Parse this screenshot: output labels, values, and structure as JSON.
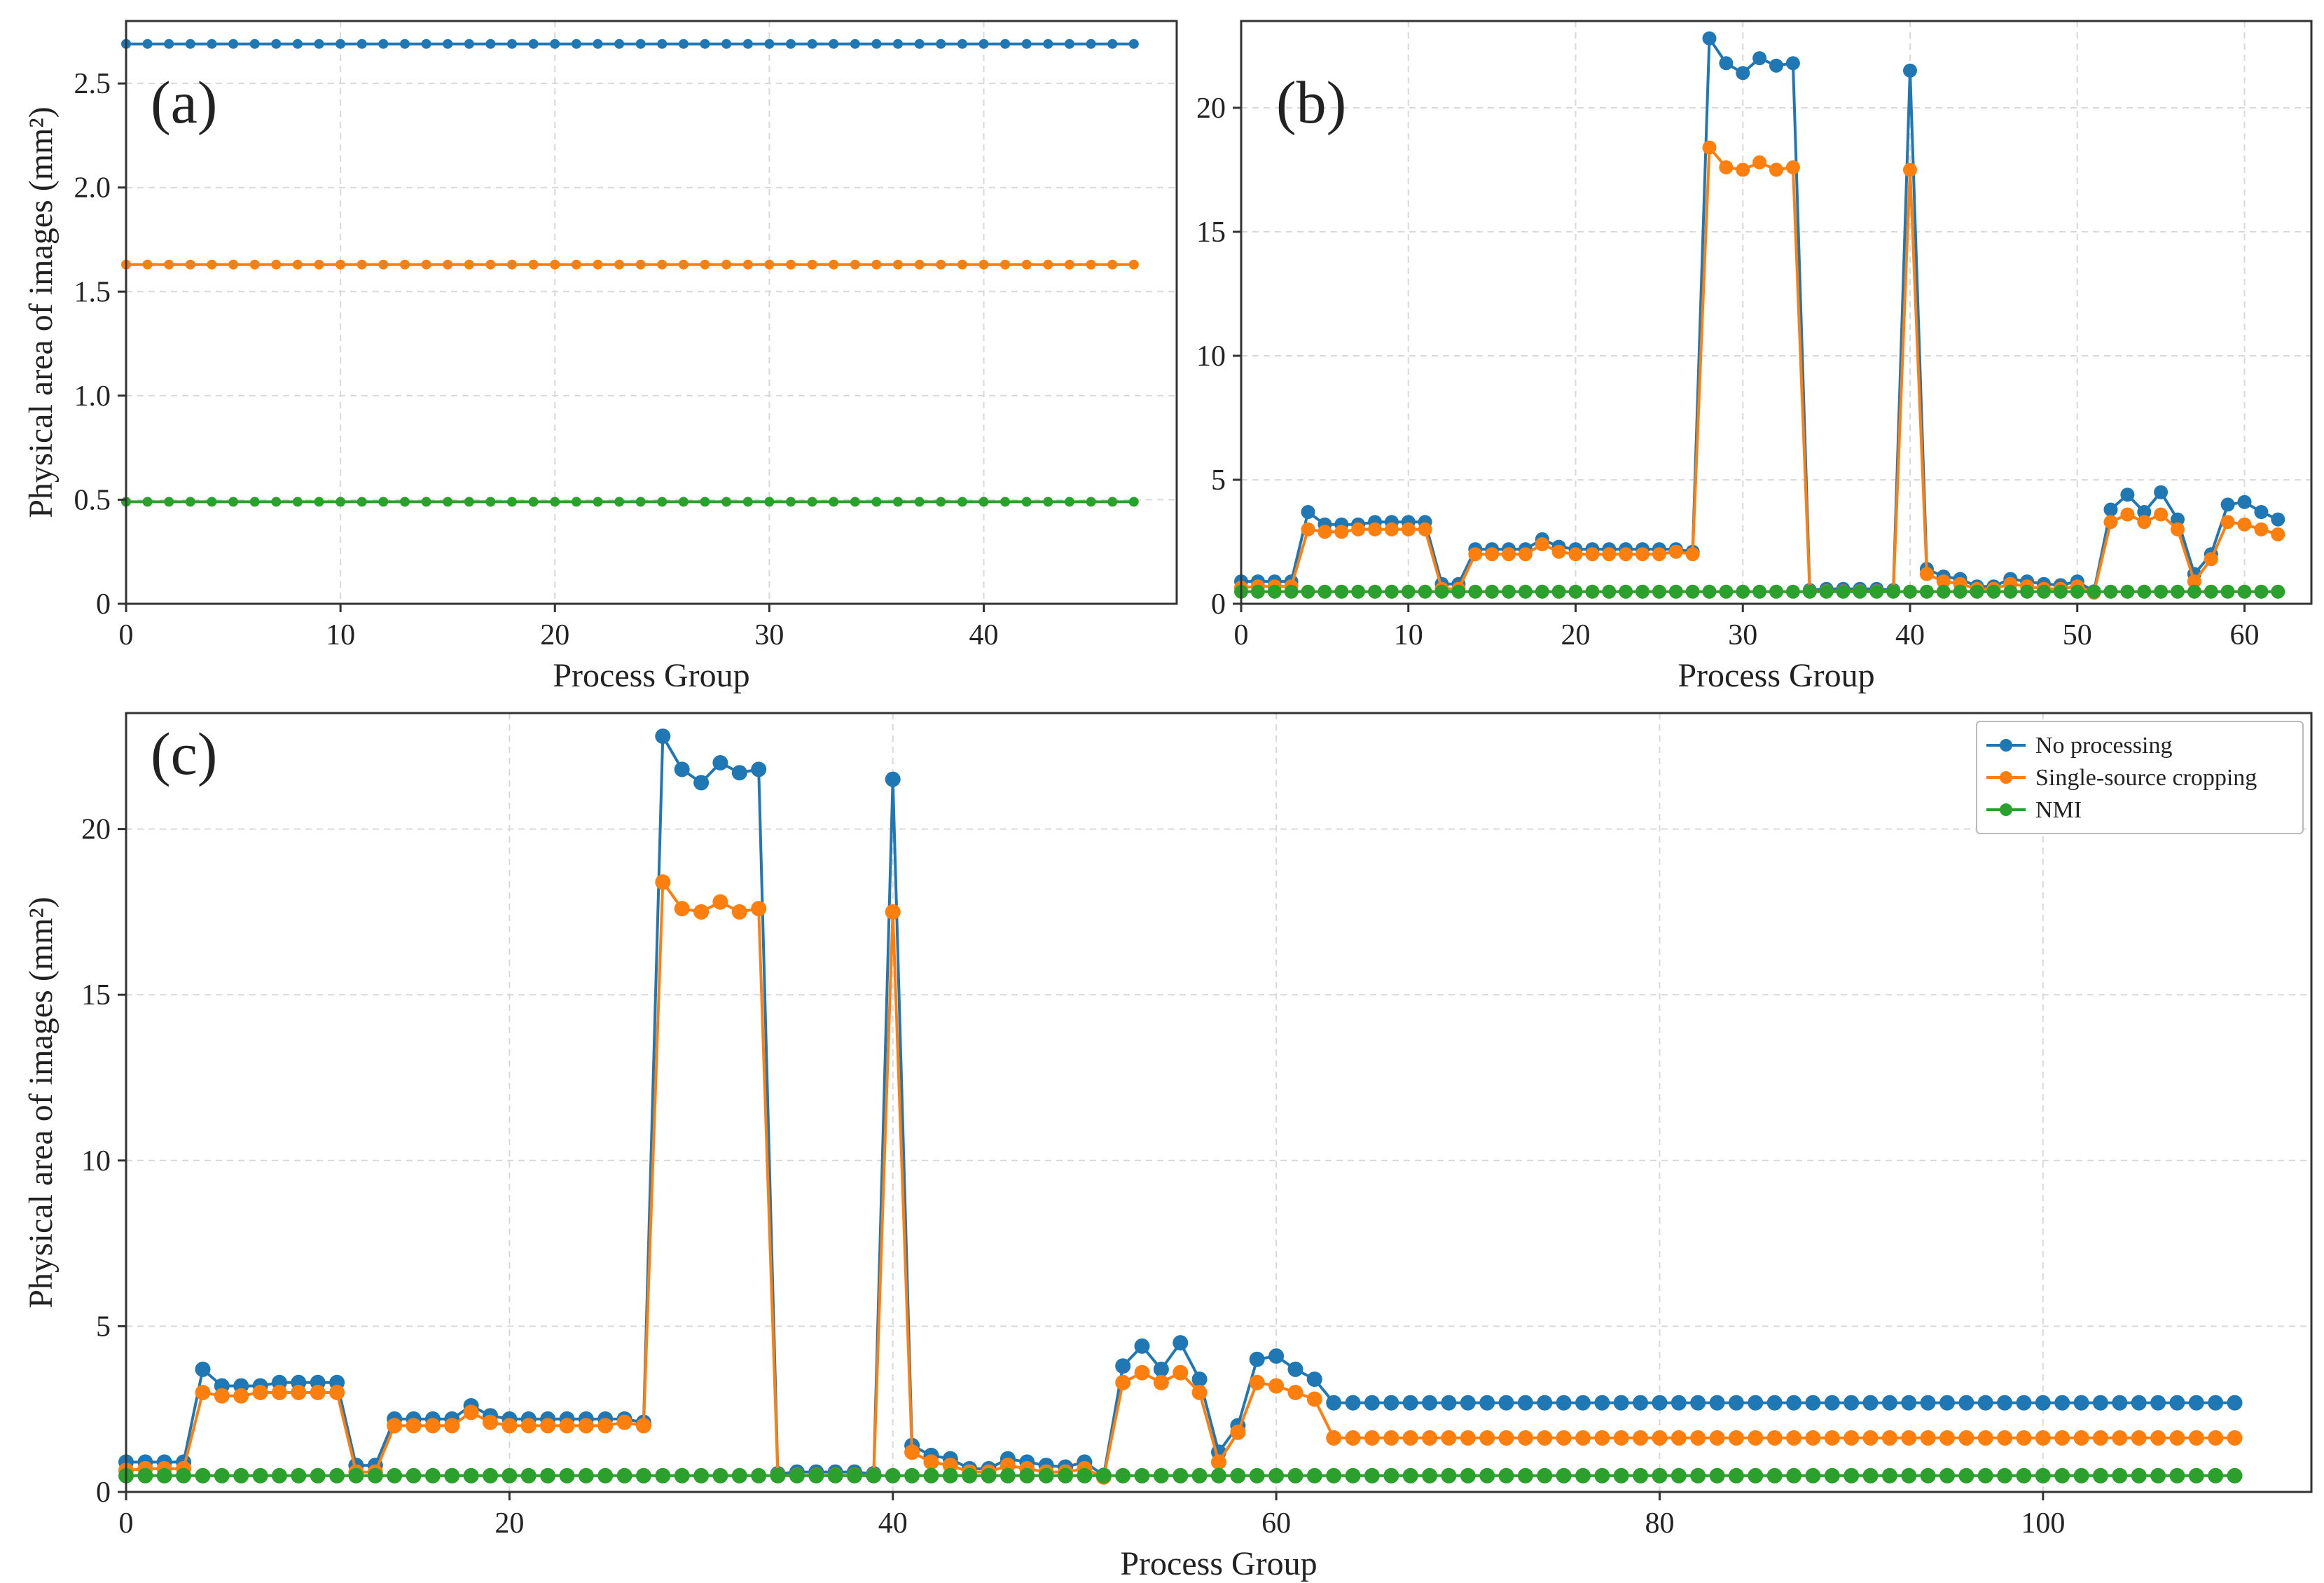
{
  "colors": {
    "no_processing": "#1f77b4",
    "single_source": "#ff7f0e",
    "nmi": "#2ca02c",
    "grid": "#d9d9d9",
    "frame": "#333333"
  },
  "chart_data": [
    {
      "panel": "(a)",
      "type": "line",
      "xlabel": "Process Group",
      "ylabel": "Physical area of images (mm²)",
      "xlim": [
        0,
        49
      ],
      "ylim": [
        0,
        2.8
      ],
      "xticks": [
        0,
        10,
        20,
        30,
        40
      ],
      "yticks": [
        0,
        0.5,
        1.0,
        1.5,
        2.0,
        2.5
      ],
      "ytick_labels": [
        "0",
        "0.5",
        "1.0",
        "1.5",
        "2.0",
        "2.5"
      ],
      "grid": true,
      "x_range": [
        0,
        47
      ],
      "series": [
        {
          "key": "no_processing",
          "constant": 2.69
        },
        {
          "key": "single_source",
          "constant": 1.63
        },
        {
          "key": "nmi",
          "constant": 0.49
        }
      ]
    },
    {
      "panel": "(b)",
      "type": "line",
      "xlabel": "Process Group",
      "ylabel": "",
      "xlim": [
        0,
        64
      ],
      "ylim": [
        0,
        23.5
      ],
      "xticks": [
        0,
        10,
        20,
        30,
        40,
        50,
        60
      ],
      "yticks": [
        0,
        5,
        10,
        15,
        20
      ],
      "ytick_labels": [
        "0",
        "5",
        "10",
        "15",
        "20"
      ],
      "grid": true,
      "x_range": [
        0,
        62
      ],
      "series": [
        {
          "key": "no_processing",
          "values": [
            0.9,
            0.9,
            0.9,
            0.9,
            3.7,
            3.2,
            3.2,
            3.2,
            3.3,
            3.3,
            3.3,
            3.3,
            0.8,
            0.8,
            2.2,
            2.2,
            2.2,
            2.2,
            2.6,
            2.3,
            2.2,
            2.2,
            2.2,
            2.2,
            2.2,
            2.2,
            2.2,
            2.1,
            22.8,
            21.8,
            21.4,
            22.0,
            21.7,
            21.8,
            0.55,
            0.6,
            0.6,
            0.6,
            0.6,
            0.55,
            21.5,
            1.4,
            1.1,
            1.0,
            0.7,
            0.7,
            1.0,
            0.9,
            0.8,
            0.75,
            0.9,
            0.5,
            3.8,
            4.4,
            3.7,
            4.5,
            3.4,
            1.2,
            2.0,
            4.0,
            4.1,
            3.7,
            3.4
          ]
        },
        {
          "key": "single_source",
          "values": [
            0.65,
            0.7,
            0.7,
            0.7,
            3.0,
            2.9,
            2.9,
            3.0,
            3.0,
            3.0,
            3.0,
            3.0,
            0.6,
            0.6,
            2.0,
            2.0,
            2.0,
            2.0,
            2.4,
            2.1,
            2.0,
            2.0,
            2.0,
            2.0,
            2.0,
            2.0,
            2.1,
            2.0,
            18.4,
            17.6,
            17.5,
            17.8,
            17.5,
            17.6,
            0.5,
            0.5,
            0.5,
            0.5,
            0.5,
            0.5,
            17.5,
            1.2,
            0.9,
            0.8,
            0.6,
            0.6,
            0.8,
            0.7,
            0.6,
            0.6,
            0.7,
            0.45,
            3.3,
            3.6,
            3.3,
            3.6,
            3.0,
            0.9,
            1.8,
            3.3,
            3.2,
            3.0,
            2.8
          ]
        },
        {
          "key": "nmi",
          "constant": 0.49
        }
      ]
    },
    {
      "panel": "(c)",
      "type": "line",
      "xlabel": "Process Group",
      "ylabel": "Physical area of images (mm²)",
      "xlim": [
        0,
        114
      ],
      "ylim": [
        0,
        23.5
      ],
      "xticks": [
        0,
        20,
        40,
        60,
        80,
        100
      ],
      "yticks": [
        0,
        5,
        10,
        15,
        20
      ],
      "ytick_labels": [
        "0",
        "5",
        "10",
        "15",
        "20"
      ],
      "grid": true,
      "legend": "top-right",
      "x_range": [
        0,
        110
      ],
      "series": [
        {
          "key": "no_processing",
          "name": "No processing",
          "values": [
            0.9,
            0.9,
            0.9,
            0.9,
            3.7,
            3.2,
            3.2,
            3.2,
            3.3,
            3.3,
            3.3,
            3.3,
            0.8,
            0.8,
            2.2,
            2.2,
            2.2,
            2.2,
            2.6,
            2.3,
            2.2,
            2.2,
            2.2,
            2.2,
            2.2,
            2.2,
            2.2,
            2.1,
            22.8,
            21.8,
            21.4,
            22.0,
            21.7,
            21.8,
            0.55,
            0.6,
            0.6,
            0.6,
            0.6,
            0.55,
            21.5,
            1.4,
            1.1,
            1.0,
            0.7,
            0.7,
            1.0,
            0.9,
            0.8,
            0.75,
            0.9,
            0.5,
            3.8,
            4.4,
            3.7,
            4.5,
            3.4,
            1.2,
            2.0,
            4.0,
            4.1,
            3.7,
            3.4
          ],
          "tail_value": 2.69
        },
        {
          "key": "single_source",
          "name": "Single-source cropping",
          "values": [
            0.65,
            0.7,
            0.7,
            0.7,
            3.0,
            2.9,
            2.9,
            3.0,
            3.0,
            3.0,
            3.0,
            3.0,
            0.6,
            0.6,
            2.0,
            2.0,
            2.0,
            2.0,
            2.4,
            2.1,
            2.0,
            2.0,
            2.0,
            2.0,
            2.0,
            2.0,
            2.1,
            2.0,
            18.4,
            17.6,
            17.5,
            17.8,
            17.5,
            17.6,
            0.5,
            0.5,
            0.5,
            0.5,
            0.5,
            0.5,
            17.5,
            1.2,
            0.9,
            0.8,
            0.6,
            0.6,
            0.8,
            0.7,
            0.6,
            0.6,
            0.7,
            0.45,
            3.3,
            3.6,
            3.3,
            3.6,
            3.0,
            0.9,
            1.8,
            3.3,
            3.2,
            3.0,
            2.8
          ],
          "tail_value": 1.63
        },
        {
          "key": "nmi",
          "name": "NMI",
          "constant": 0.49
        }
      ]
    }
  ]
}
